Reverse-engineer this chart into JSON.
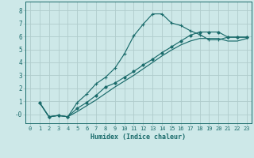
{
  "xlabel": "Humidex (Indice chaleur)",
  "bg_color": "#cde8e8",
  "grid_color": "#b0cccc",
  "line_color": "#1a6b6b",
  "xlim": [
    -0.5,
    23.5
  ],
  "ylim": [
    -0.7,
    8.7
  ],
  "xticks": [
    0,
    1,
    2,
    3,
    4,
    5,
    6,
    7,
    8,
    9,
    10,
    11,
    12,
    13,
    14,
    15,
    16,
    17,
    18,
    19,
    20,
    21,
    22,
    23
  ],
  "yticks": [
    0,
    1,
    2,
    3,
    4,
    5,
    6,
    7,
    8
  ],
  "line1_x": [
    1,
    2,
    3,
    4,
    5,
    6,
    7,
    8,
    9,
    10,
    11,
    12,
    13,
    14,
    15,
    16,
    17,
    18,
    19,
    20,
    21,
    22,
    23
  ],
  "line1_y": [
    0.9,
    -0.2,
    -0.1,
    -0.2,
    0.9,
    1.55,
    2.35,
    2.85,
    3.55,
    4.65,
    6.05,
    6.95,
    7.75,
    7.75,
    7.05,
    6.85,
    6.45,
    6.15,
    5.75,
    5.75,
    5.95,
    5.95,
    5.95
  ],
  "line2_x": [
    1,
    2,
    3,
    4,
    5,
    6,
    7,
    8,
    9,
    10,
    11,
    12,
    13,
    14,
    15,
    16,
    17,
    18,
    19,
    20,
    21,
    22,
    23
  ],
  "line2_y": [
    0.9,
    -0.2,
    -0.1,
    -0.2,
    0.45,
    0.9,
    1.45,
    2.1,
    2.4,
    2.85,
    3.3,
    3.8,
    4.25,
    4.75,
    5.2,
    5.65,
    6.1,
    6.35,
    6.35,
    6.35,
    5.95,
    5.95,
    5.95
  ],
  "line3_x": [
    1,
    2,
    3,
    4,
    5,
    6,
    7,
    8,
    9,
    10,
    11,
    12,
    13,
    14,
    15,
    16,
    17,
    18,
    19,
    20,
    21,
    22,
    23
  ],
  "line3_y": [
    0.9,
    -0.2,
    -0.1,
    -0.2,
    0.2,
    0.65,
    1.1,
    1.6,
    2.1,
    2.55,
    3.0,
    3.5,
    4.0,
    4.5,
    4.95,
    5.35,
    5.65,
    5.85,
    5.85,
    5.85,
    5.65,
    5.65,
    5.85
  ]
}
